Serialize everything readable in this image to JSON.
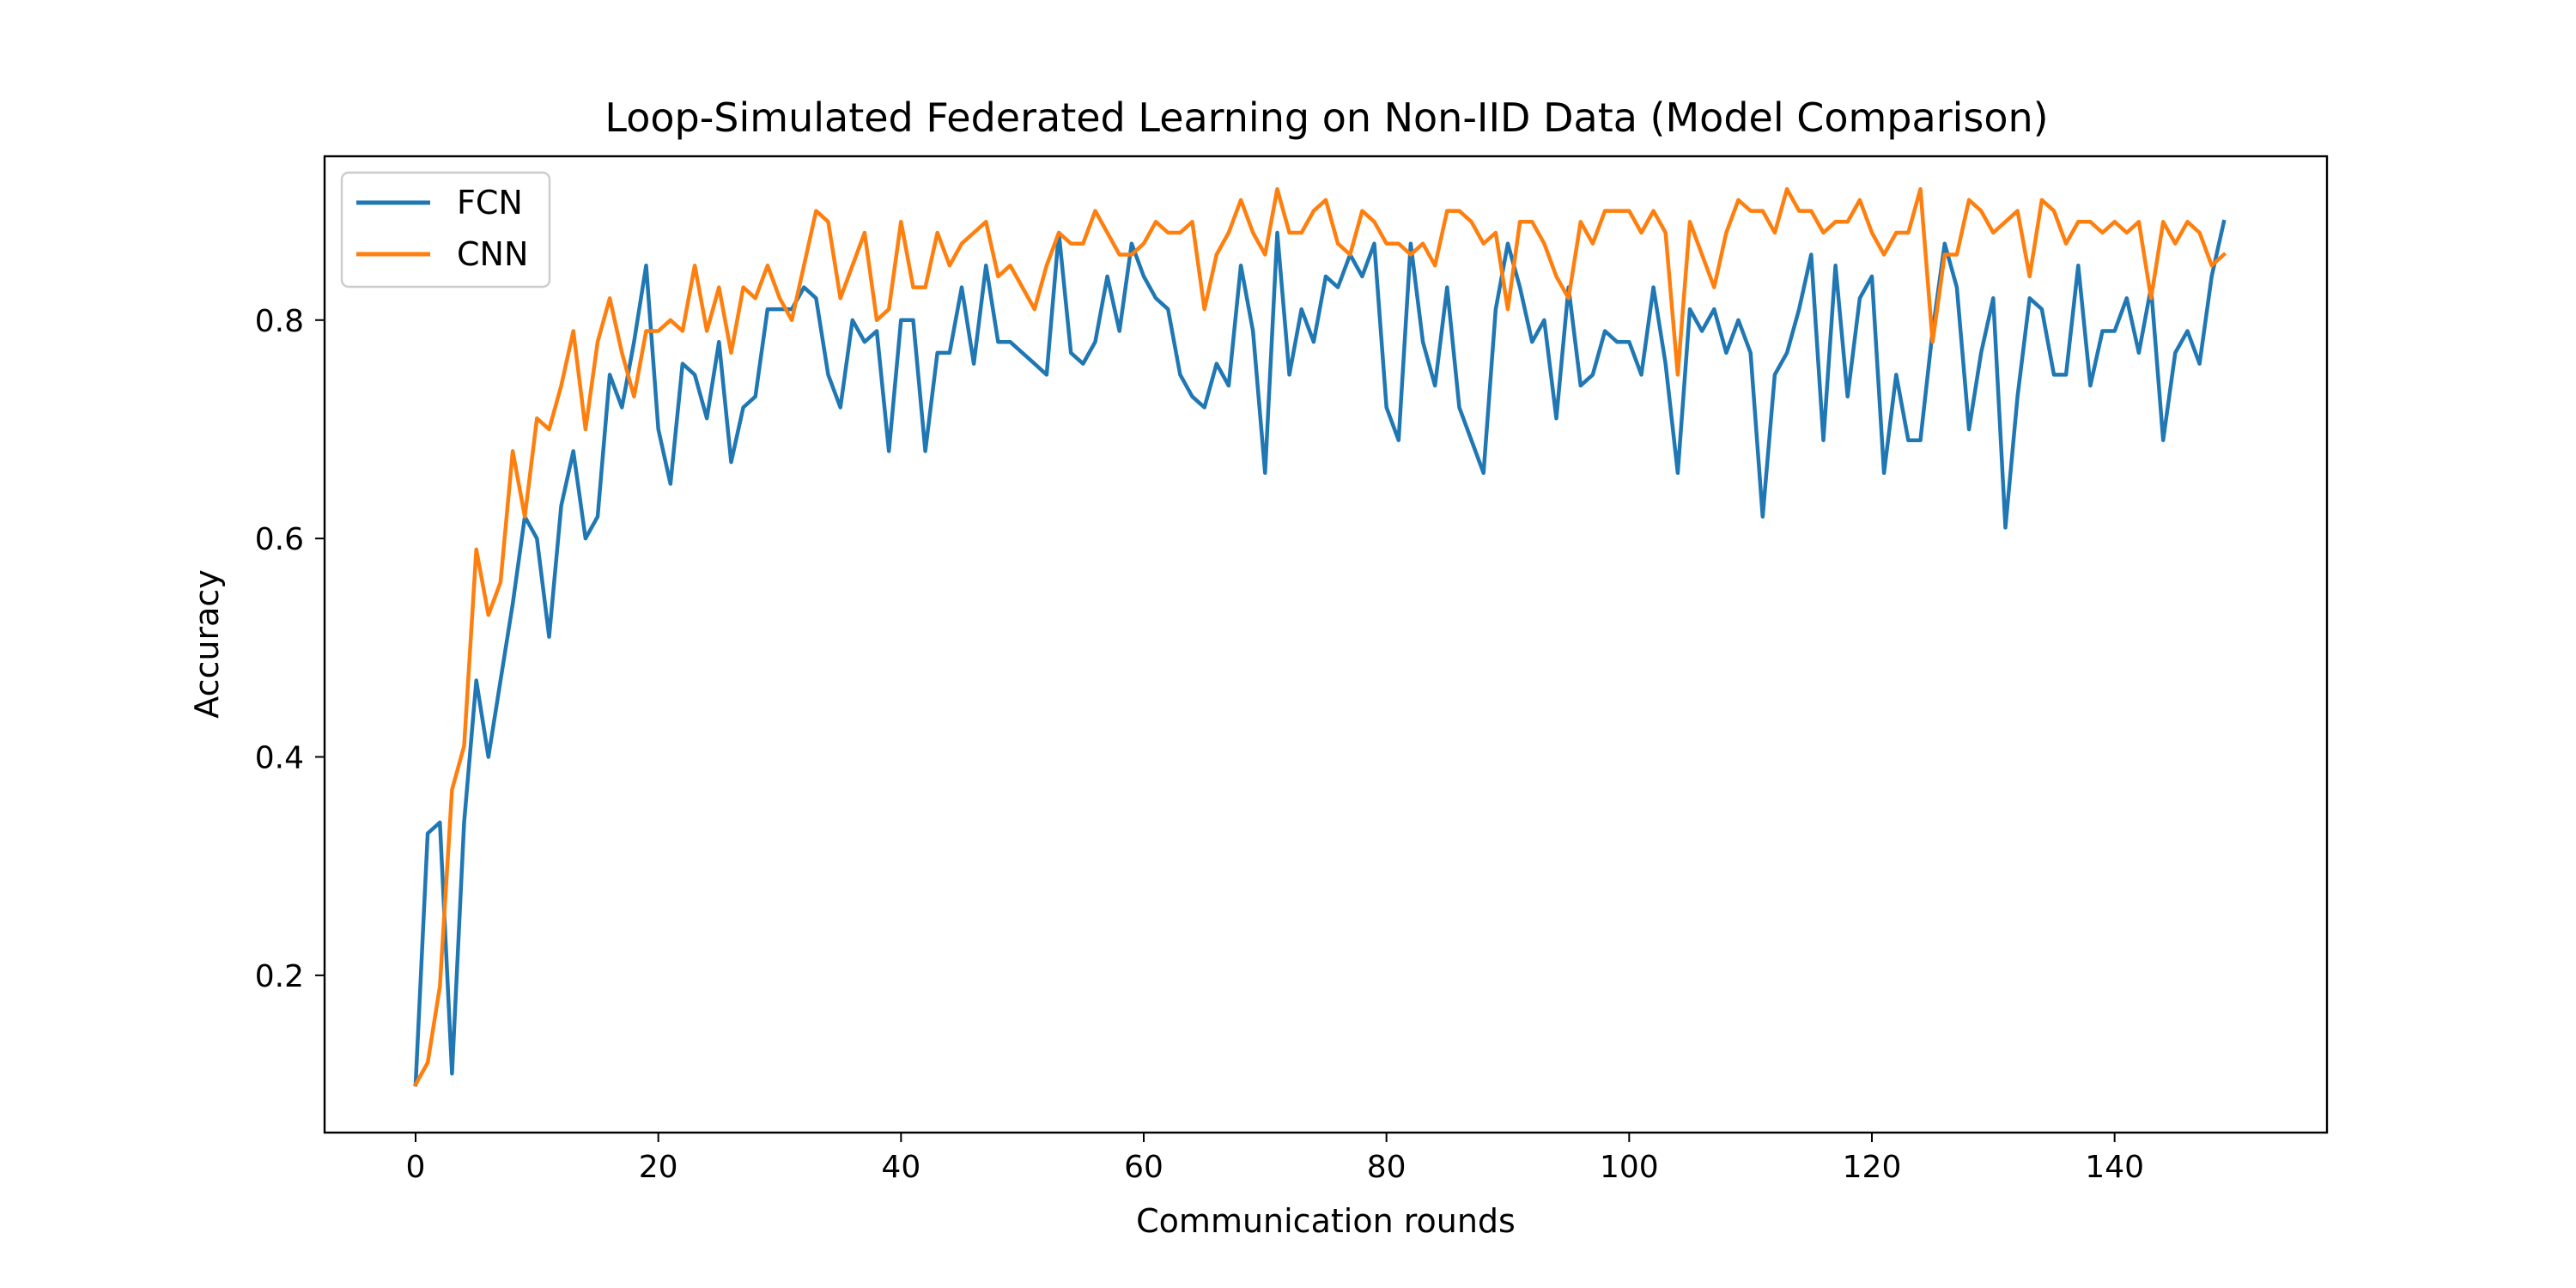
{
  "chart_data": {
    "type": "line",
    "title": "Loop-Simulated Federated Learning on Non-IID Data (Model Comparison)",
    "xlabel": "Communication rounds",
    "ylabel": "Accuracy",
    "xlim": [
      -7.5,
      157.5
    ],
    "ylim": [
      0.056,
      0.95
    ],
    "xticks": [
      0,
      20,
      40,
      60,
      80,
      100,
      120,
      140
    ],
    "yticks": [
      0.2,
      0.4,
      0.6,
      0.8
    ],
    "ytick_labels": [
      "0.2",
      "0.4",
      "0.6",
      "0.8"
    ],
    "grid": false,
    "legend_position": "upper-left",
    "series": [
      {
        "name": "FCN",
        "color": "#1f77b4",
        "values": [
          0.1,
          0.33,
          0.34,
          0.11,
          0.34,
          0.47,
          0.4,
          0.47,
          0.54,
          0.62,
          0.6,
          0.51,
          0.63,
          0.68,
          0.6,
          0.62,
          0.75,
          0.72,
          0.78,
          0.85,
          0.7,
          0.65,
          0.76,
          0.75,
          0.71,
          0.78,
          0.67,
          0.72,
          0.73,
          0.81,
          0.81,
          0.81,
          0.83,
          0.82,
          0.75,
          0.72,
          0.8,
          0.78,
          0.79,
          0.68,
          0.8,
          0.8,
          0.68,
          0.77,
          0.77,
          0.83,
          0.76,
          0.85,
          0.78,
          0.78,
          0.77,
          0.76,
          0.75,
          0.88,
          0.77,
          0.76,
          0.78,
          0.84,
          0.79,
          0.87,
          0.84,
          0.82,
          0.81,
          0.75,
          0.73,
          0.72,
          0.76,
          0.74,
          0.85,
          0.79,
          0.66,
          0.88,
          0.75,
          0.81,
          0.78,
          0.84,
          0.83,
          0.86,
          0.84,
          0.87,
          0.72,
          0.69,
          0.87,
          0.78,
          0.74,
          0.83,
          0.72,
          0.69,
          0.66,
          0.81,
          0.87,
          0.83,
          0.78,
          0.8,
          0.71,
          0.83,
          0.74,
          0.75,
          0.79,
          0.78,
          0.78,
          0.75,
          0.83,
          0.76,
          0.66,
          0.81,
          0.79,
          0.81,
          0.77,
          0.8,
          0.77,
          0.62,
          0.75,
          0.77,
          0.81,
          0.86,
          0.69,
          0.85,
          0.73,
          0.82,
          0.84,
          0.66,
          0.75,
          0.69,
          0.69,
          0.79,
          0.87,
          0.83,
          0.7,
          0.77,
          0.82,
          0.61,
          0.73,
          0.82,
          0.81,
          0.75,
          0.75,
          0.85,
          0.74,
          0.79,
          0.79,
          0.82,
          0.77,
          0.83,
          0.69,
          0.77,
          0.79,
          0.76,
          0.84,
          0.89
        ]
      },
      {
        "name": "CNN",
        "color": "#ff7f0e",
        "values": [
          0.1,
          0.12,
          0.19,
          0.37,
          0.41,
          0.59,
          0.53,
          0.56,
          0.68,
          0.62,
          0.71,
          0.7,
          0.74,
          0.79,
          0.7,
          0.78,
          0.82,
          0.77,
          0.73,
          0.79,
          0.79,
          0.8,
          0.79,
          0.85,
          0.79,
          0.83,
          0.77,
          0.83,
          0.82,
          0.85,
          0.82,
          0.8,
          0.85,
          0.9,
          0.89,
          0.82,
          0.85,
          0.88,
          0.8,
          0.81,
          0.89,
          0.83,
          0.83,
          0.88,
          0.85,
          0.87,
          0.88,
          0.89,
          0.84,
          0.85,
          0.83,
          0.81,
          0.85,
          0.88,
          0.87,
          0.87,
          0.9,
          0.88,
          0.86,
          0.86,
          0.87,
          0.89,
          0.88,
          0.88,
          0.89,
          0.81,
          0.86,
          0.88,
          0.91,
          0.88,
          0.86,
          0.92,
          0.88,
          0.88,
          0.9,
          0.91,
          0.87,
          0.86,
          0.9,
          0.89,
          0.87,
          0.87,
          0.86,
          0.87,
          0.85,
          0.9,
          0.9,
          0.89,
          0.87,
          0.88,
          0.81,
          0.89,
          0.89,
          0.87,
          0.84,
          0.82,
          0.89,
          0.87,
          0.9,
          0.9,
          0.9,
          0.88,
          0.9,
          0.88,
          0.75,
          0.89,
          0.86,
          0.83,
          0.88,
          0.91,
          0.9,
          0.9,
          0.88,
          0.92,
          0.9,
          0.9,
          0.88,
          0.89,
          0.89,
          0.91,
          0.88,
          0.86,
          0.88,
          0.88,
          0.92,
          0.78,
          0.86,
          0.86,
          0.91,
          0.9,
          0.88,
          0.89,
          0.9,
          0.84,
          0.91,
          0.9,
          0.87,
          0.89,
          0.89,
          0.88,
          0.89,
          0.88,
          0.89,
          0.82,
          0.89,
          0.87,
          0.89,
          0.88,
          0.85,
          0.86
        ]
      }
    ]
  }
}
